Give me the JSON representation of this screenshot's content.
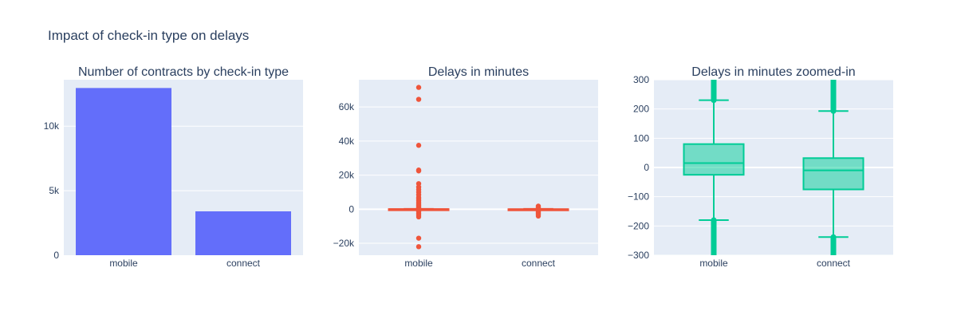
{
  "title": "Impact of check-in type on delays",
  "colors": {
    "plot_bg": "#e5ecf6",
    "grid": "#ffffff",
    "text": "#2a3f5f",
    "bar": "#636efa",
    "box_red": "#ef553b",
    "box_green": "#00cc96"
  },
  "chart_data": [
    {
      "type": "bar",
      "title": "Number of contracts by check-in type",
      "categories": [
        "mobile",
        "connect"
      ],
      "values": [
        12960,
        3400
      ],
      "ylim": [
        0,
        13600
      ],
      "yticks": [
        0,
        5000,
        10000
      ],
      "ytick_labels": [
        "0",
        "5k",
        "10k"
      ]
    },
    {
      "type": "box",
      "title": "Delays in minutes",
      "categories": [
        "mobile",
        "connect"
      ],
      "ylim": [
        -27000,
        76000
      ],
      "yticks": [
        -20000,
        0,
        20000,
        40000,
        60000
      ],
      "ytick_labels": [
        "−20k",
        "0",
        "20k",
        "40k",
        "60k"
      ],
      "series": [
        {
          "category": "mobile",
          "q1": -25,
          "median": 15,
          "q3": 80,
          "lowerfence": -180,
          "upperfence": 230,
          "outliers": [
            71500,
            64500,
            37500,
            23000,
            22500,
            15000,
            13000,
            11500,
            10000,
            8500,
            7000,
            6000,
            5000,
            4000,
            3000,
            2200,
            1500,
            900,
            500,
            -800,
            -1500,
            -2500,
            -3500,
            -4500,
            -17000,
            -22000
          ]
        },
        {
          "category": "connect",
          "q1": -75,
          "median": -10,
          "q3": 32,
          "lowerfence": -238,
          "upperfence": 193,
          "outliers": [
            1800,
            1200,
            700,
            400,
            -600,
            -1200,
            -1800,
            -2500,
            -3200,
            -4000
          ]
        }
      ]
    },
    {
      "type": "box",
      "title": "Delays in minutes zoomed-in",
      "categories": [
        "mobile",
        "connect"
      ],
      "ylim": [
        -300,
        300
      ],
      "yticks": [
        -300,
        -200,
        -100,
        0,
        100,
        200,
        300
      ],
      "ytick_labels": [
        "−300",
        "−200",
        "−100",
        "0",
        "100",
        "200",
        "300"
      ],
      "series": [
        {
          "category": "mobile",
          "q1": -25,
          "median": 15,
          "q3": 80,
          "lowerfence": -180,
          "upperfence": 230
        },
        {
          "category": "connect",
          "q1": -75,
          "median": -10,
          "q3": 32,
          "lowerfence": -238,
          "upperfence": 193
        }
      ]
    }
  ]
}
